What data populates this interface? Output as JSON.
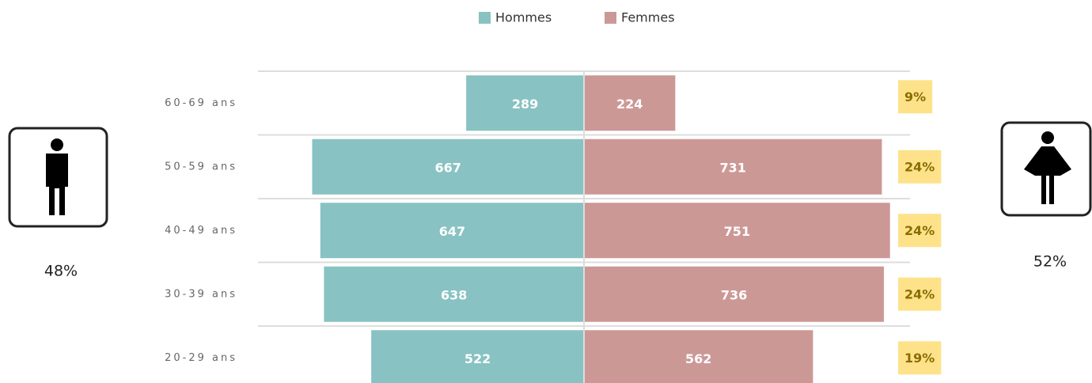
{
  "chart_data": {
    "type": "pyramid",
    "categories": [
      "60-69 ans",
      "50-59 ans",
      "40-49 ans",
      "30-39 ans",
      "20-29 ans"
    ],
    "series": [
      {
        "name": "Hommes",
        "color": "#88c2c2",
        "values": [
          289,
          667,
          647,
          638,
          522
        ],
        "share": 48,
        "share_label": "48%"
      },
      {
        "name": "Femmes",
        "color": "#cc9896",
        "values": [
          224,
          731,
          751,
          736,
          562
        ],
        "share": 52,
        "share_label": "52%"
      }
    ],
    "row_shares": {
      "values": [
        9,
        24,
        24,
        24,
        19
      ],
      "value_labels": [
        "9%",
        "24%",
        "24%",
        "24%",
        "19%"
      ],
      "color": "#fde28a"
    }
  }
}
